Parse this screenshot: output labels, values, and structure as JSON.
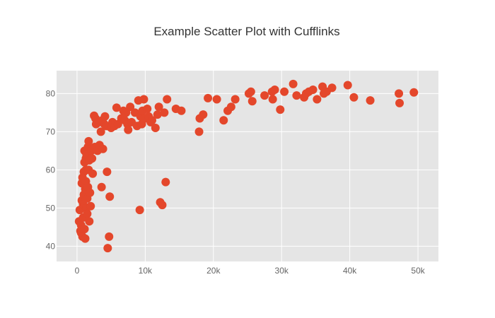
{
  "chart_data": {
    "type": "scatter",
    "title": "Example Scatter Plot with Cufflinks",
    "xlabel": "",
    "ylabel": "",
    "xlim": [
      -3000,
      53000
    ],
    "ylim": [
      36,
      86
    ],
    "x_ticks": [
      0,
      10000,
      20000,
      30000,
      40000,
      50000
    ],
    "x_tick_labels": [
      "0",
      "10k",
      "20k",
      "30k",
      "40k",
      "50k"
    ],
    "y_ticks": [
      40,
      50,
      60,
      70,
      80
    ],
    "y_tick_labels": [
      "40",
      "50",
      "60",
      "70",
      "80"
    ],
    "grid": true,
    "colors": {
      "plot_bg": "#e5e5e5",
      "grid": "#ffffff",
      "marker": "#e4472b"
    },
    "series": [
      {
        "points": [
          [
            300,
            46.5
          ],
          [
            400,
            49.5
          ],
          [
            500,
            44.0
          ],
          [
            600,
            45.5
          ],
          [
            600,
            43.5
          ],
          [
            700,
            52.0
          ],
          [
            700,
            56.5
          ],
          [
            800,
            58.0
          ],
          [
            800,
            42.5
          ],
          [
            900,
            47.5
          ],
          [
            900,
            51.0
          ],
          [
            1000,
            53.5
          ],
          [
            1000,
            59.5
          ],
          [
            1100,
            62.0
          ],
          [
            1100,
            65.0
          ],
          [
            1100,
            44.5
          ],
          [
            1200,
            42.0
          ],
          [
            1200,
            55.0
          ],
          [
            1300,
            57.0
          ],
          [
            1300,
            60.0
          ],
          [
            1300,
            63.0
          ],
          [
            1400,
            64.0
          ],
          [
            1400,
            50.0
          ],
          [
            1500,
            48.5
          ],
          [
            1500,
            52.5
          ],
          [
            1600,
            55.5
          ],
          [
            1600,
            66.0
          ],
          [
            1700,
            60.0
          ],
          [
            1700,
            67.5
          ],
          [
            1800,
            46.5
          ],
          [
            1800,
            62.5
          ],
          [
            1900,
            54.0
          ],
          [
            2000,
            50.5
          ],
          [
            2100,
            65.0
          ],
          [
            2200,
            63.0
          ],
          [
            2300,
            59.0
          ],
          [
            2500,
            74.2
          ],
          [
            2600,
            66.0
          ],
          [
            2700,
            73.5
          ],
          [
            2800,
            72.0
          ],
          [
            3000,
            65.0
          ],
          [
            3200,
            72.5
          ],
          [
            3300,
            66.5
          ],
          [
            3500,
            70.0
          ],
          [
            3600,
            55.5
          ],
          [
            3700,
            73.0
          ],
          [
            3800,
            65.5
          ],
          [
            4000,
            72.0
          ],
          [
            4100,
            74.0
          ],
          [
            4300,
            71.5
          ],
          [
            4400,
            59.5
          ],
          [
            4500,
            39.5
          ],
          [
            4700,
            42.5
          ],
          [
            4800,
            53.0
          ],
          [
            5000,
            71.0
          ],
          [
            5200,
            72.5
          ],
          [
            5500,
            71.5
          ],
          [
            5800,
            76.3
          ],
          [
            6000,
            72.0
          ],
          [
            6500,
            73.5
          ],
          [
            6800,
            75.5
          ],
          [
            7000,
            73.0
          ],
          [
            7200,
            75.0
          ],
          [
            7400,
            72.0
          ],
          [
            7500,
            70.5
          ],
          [
            7800,
            76.5
          ],
          [
            8000,
            72.5
          ],
          [
            8500,
            75.0
          ],
          [
            8800,
            71.5
          ],
          [
            9000,
            78.2
          ],
          [
            9200,
            49.5
          ],
          [
            9300,
            74.0
          ],
          [
            9500,
            72.0
          ],
          [
            9600,
            75.5
          ],
          [
            9800,
            78.5
          ],
          [
            10000,
            73.5
          ],
          [
            10300,
            76.0
          ],
          [
            10500,
            74.0
          ],
          [
            10800,
            72.5
          ],
          [
            11000,
            73.0
          ],
          [
            11500,
            71.0
          ],
          [
            11800,
            74.5
          ],
          [
            12000,
            76.5
          ],
          [
            12200,
            51.5
          ],
          [
            12500,
            50.8
          ],
          [
            12800,
            75.0
          ],
          [
            13000,
            56.8
          ],
          [
            13200,
            78.5
          ],
          [
            14500,
            76.0
          ],
          [
            15300,
            75.5
          ],
          [
            17900,
            70.0
          ],
          [
            18000,
            73.5
          ],
          [
            18500,
            74.5
          ],
          [
            19200,
            78.8
          ],
          [
            20500,
            78.5
          ],
          [
            21500,
            73.0
          ],
          [
            22100,
            75.5
          ],
          [
            22600,
            76.5
          ],
          [
            23200,
            78.5
          ],
          [
            25200,
            80.0
          ],
          [
            25500,
            80.5
          ],
          [
            25700,
            78.0
          ],
          [
            27500,
            79.5
          ],
          [
            28600,
            80.5
          ],
          [
            28700,
            78.5
          ],
          [
            29000,
            81.0
          ],
          [
            29800,
            75.8
          ],
          [
            30400,
            80.5
          ],
          [
            31700,
            82.5
          ],
          [
            32200,
            79.5
          ],
          [
            33300,
            79.0
          ],
          [
            33600,
            80.0
          ],
          [
            34000,
            80.5
          ],
          [
            34600,
            81.0
          ],
          [
            35200,
            78.5
          ],
          [
            36000,
            81.8
          ],
          [
            36200,
            80.0
          ],
          [
            36600,
            80.5
          ],
          [
            37400,
            81.5
          ],
          [
            39700,
            82.2
          ],
          [
            40600,
            79.0
          ],
          [
            43000,
            78.2
          ],
          [
            47200,
            80.0
          ],
          [
            47300,
            77.5
          ],
          [
            49400,
            80.3
          ]
        ]
      }
    ]
  }
}
